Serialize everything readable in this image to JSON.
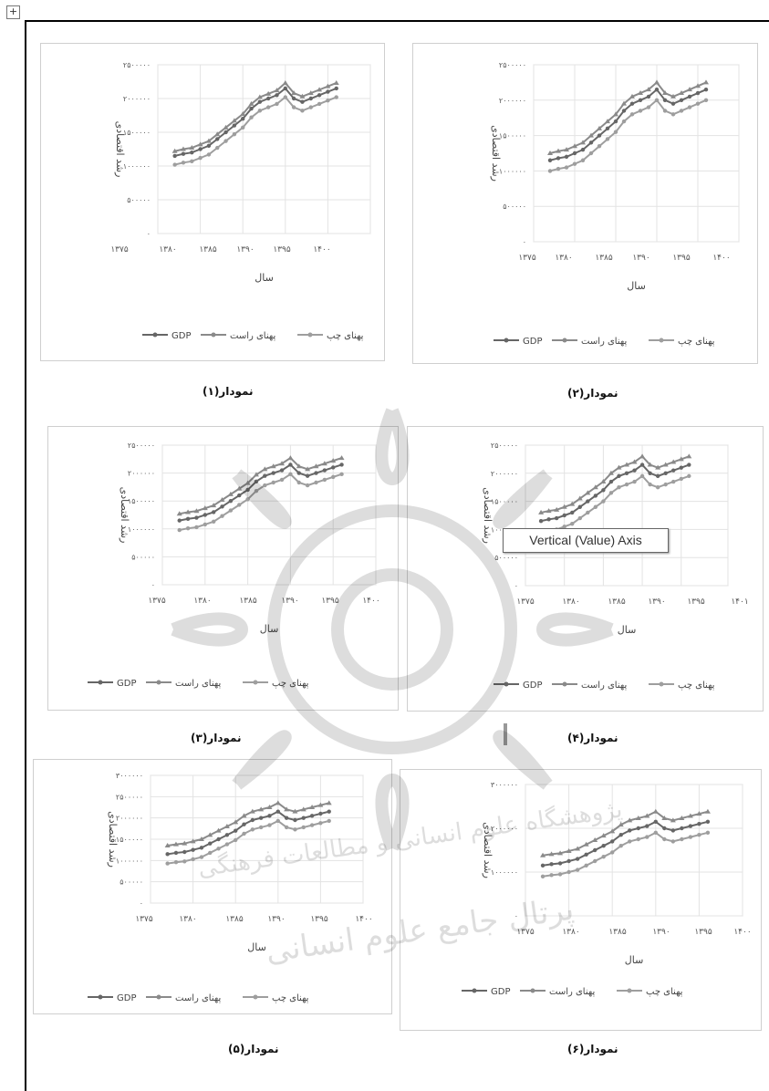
{
  "page": {
    "move_handle_glyph": "+",
    "tooltip_text": "Vertical (Value) Axis",
    "captions": [
      "نمودار(۱)",
      "نمودار(۲)",
      "نمودار(۳)",
      "نمودار(۴)",
      "نمودار(۵)",
      "نمودار(۶)"
    ],
    "watermark_lines": [
      "پژوهشگاه علوم انسانی و مطالعات فرهنگی",
      "پرتال جامع علوم انسانی"
    ]
  },
  "chart_data": [
    {
      "type": "line",
      "caption": "نمودار(۱)",
      "ylabel": "رشد اقتصادی",
      "xlabel": "سال",
      "ylim": [
        0,
        2500000
      ],
      "yticks": [
        {
          "v": 0,
          "label": "۰"
        },
        {
          "v": 500000,
          "label": "۵۰۰۰۰۰"
        },
        {
          "v": 1000000,
          "label": "۱۰۰۰۰۰۰"
        },
        {
          "v": 1500000,
          "label": "۱۵۰۰۰۰۰"
        },
        {
          "v": 2000000,
          "label": "۲۰۰۰۰۰۰"
        },
        {
          "v": 2500000,
          "label": "۲۵۰۰۰۰۰"
        }
      ],
      "xlim": [
        1375,
        1400
      ],
      "xticks": [
        {
          "v": 1375,
          "label": "۱۳۷۵"
        },
        {
          "v": 1380,
          "label": "۱۳۸۰"
        },
        {
          "v": 1385,
          "label": "۱۳۸۵"
        },
        {
          "v": 1390,
          "label": "۱۳۹۰"
        },
        {
          "v": 1395,
          "label": "۱۳۹۵"
        },
        {
          "v": 1400,
          "label": "۱۴۰۰"
        }
      ],
      "x": [
        1377,
        1378,
        1379,
        1380,
        1381,
        1382,
        1383,
        1384,
        1385,
        1386,
        1387,
        1388,
        1389,
        1390,
        1391,
        1392,
        1393,
        1394,
        1395,
        1396
      ],
      "series": [
        {
          "name": "GDP",
          "color": "#666666",
          "values": [
            1150000,
            1180000,
            1200000,
            1250000,
            1300000,
            1400000,
            1500000,
            1600000,
            1700000,
            1850000,
            1950000,
            2000000,
            2050000,
            2150000,
            2000000,
            1950000,
            2000000,
            2050000,
            2100000,
            2150000
          ]
        },
        {
          "name": "پهنای راست",
          "color": "#8a8a8a",
          "values": [
            1220000,
            1250000,
            1270000,
            1320000,
            1370000,
            1470000,
            1570000,
            1670000,
            1770000,
            1920000,
            2020000,
            2070000,
            2120000,
            2230000,
            2080000,
            2030000,
            2080000,
            2130000,
            2180000,
            2230000
          ]
        },
        {
          "name": "پهنای چپ",
          "color": "#9e9e9e",
          "values": [
            1020000,
            1050000,
            1070000,
            1120000,
            1170000,
            1270000,
            1370000,
            1470000,
            1570000,
            1720000,
            1820000,
            1870000,
            1920000,
            2020000,
            1870000,
            1820000,
            1870000,
            1920000,
            1970000,
            2020000
          ]
        }
      ]
    },
    {
      "type": "line",
      "caption": "نمودار(۲)",
      "ylabel": "رشد اقتصادی",
      "xlabel": "سال",
      "ylim": [
        0,
        2500000
      ],
      "yticks": [
        {
          "v": 0,
          "label": "۰"
        },
        {
          "v": 500000,
          "label": "۵۰۰۰۰۰"
        },
        {
          "v": 1000000,
          "label": "۱۰۰۰۰۰۰"
        },
        {
          "v": 1500000,
          "label": "۱۵۰۰۰۰۰"
        },
        {
          "v": 2000000,
          "label": "۲۰۰۰۰۰۰"
        },
        {
          "v": 2500000,
          "label": "۲۵۰۰۰۰۰"
        }
      ],
      "xlim": [
        1375,
        1400
      ],
      "xticks": [
        {
          "v": 1375,
          "label": "۱۳۷۵"
        },
        {
          "v": 1380,
          "label": "۱۳۸۰"
        },
        {
          "v": 1385,
          "label": "۱۳۸۵"
        },
        {
          "v": 1390,
          "label": "۱۳۹۰"
        },
        {
          "v": 1395,
          "label": "۱۳۹۵"
        },
        {
          "v": 1400,
          "label": "۱۴۰۰"
        }
      ],
      "x": [
        1377,
        1378,
        1379,
        1380,
        1381,
        1382,
        1383,
        1384,
        1385,
        1386,
        1387,
        1388,
        1389,
        1390,
        1391,
        1392,
        1393,
        1394,
        1395,
        1396
      ],
      "series": [
        {
          "name": "GDP",
          "color": "#666666",
          "values": [
            1150000,
            1180000,
            1200000,
            1250000,
            1300000,
            1400000,
            1500000,
            1600000,
            1700000,
            1850000,
            1950000,
            2000000,
            2050000,
            2150000,
            2000000,
            1950000,
            2000000,
            2050000,
            2100000,
            2150000
          ]
        },
        {
          "name": "پهنای راست",
          "color": "#8a8a8a",
          "values": [
            1250000,
            1280000,
            1300000,
            1350000,
            1400000,
            1500000,
            1600000,
            1700000,
            1800000,
            1950000,
            2050000,
            2100000,
            2150000,
            2250000,
            2100000,
            2050000,
            2100000,
            2150000,
            2200000,
            2250000
          ]
        },
        {
          "name": "پهنای چپ",
          "color": "#9e9e9e",
          "values": [
            1000000,
            1030000,
            1050000,
            1100000,
            1150000,
            1250000,
            1350000,
            1450000,
            1550000,
            1700000,
            1800000,
            1850000,
            1900000,
            2000000,
            1850000,
            1800000,
            1850000,
            1900000,
            1950000,
            2000000
          ]
        }
      ]
    },
    {
      "type": "line",
      "caption": "نمودار(۳)",
      "ylabel": "رشد اقتصادی",
      "xlabel": "سال",
      "ylim": [
        0,
        2500000
      ],
      "yticks": [
        {
          "v": 0,
          "label": "۰"
        },
        {
          "v": 500000,
          "label": "۵۰۰۰۰۰"
        },
        {
          "v": 1000000,
          "label": "۱۰۰۰۰۰۰"
        },
        {
          "v": 1500000,
          "label": "۱۵۰۰۰۰۰"
        },
        {
          "v": 2000000,
          "label": "۲۰۰۰۰۰۰"
        },
        {
          "v": 2500000,
          "label": "۲۵۰۰۰۰۰"
        }
      ],
      "xlim": [
        1375,
        1400
      ],
      "xticks": [
        {
          "v": 1375,
          "label": "۱۳۷۵"
        },
        {
          "v": 1380,
          "label": "۱۳۸۰"
        },
        {
          "v": 1385,
          "label": "۱۳۸۵"
        },
        {
          "v": 1390,
          "label": "۱۳۹۰"
        },
        {
          "v": 1395,
          "label": "۱۳۹۵"
        },
        {
          "v": 1400,
          "label": "۱۴۰۰"
        }
      ],
      "x": [
        1377,
        1378,
        1379,
        1380,
        1381,
        1382,
        1383,
        1384,
        1385,
        1386,
        1387,
        1388,
        1389,
        1390,
        1391,
        1392,
        1393,
        1394,
        1395,
        1396
      ],
      "series": [
        {
          "name": "GDP",
          "color": "#666666",
          "values": [
            1150000,
            1180000,
            1200000,
            1250000,
            1300000,
            1400000,
            1500000,
            1600000,
            1700000,
            1850000,
            1950000,
            2000000,
            2050000,
            2150000,
            2000000,
            1950000,
            2000000,
            2050000,
            2100000,
            2150000
          ]
        },
        {
          "name": "پهنای راست",
          "color": "#8a8a8a",
          "values": [
            1270000,
            1300000,
            1320000,
            1370000,
            1420000,
            1520000,
            1620000,
            1720000,
            1820000,
            1970000,
            2070000,
            2120000,
            2170000,
            2270000,
            2120000,
            2070000,
            2120000,
            2170000,
            2220000,
            2270000
          ]
        },
        {
          "name": "پهنای چپ",
          "color": "#9e9e9e",
          "values": [
            980000,
            1010000,
            1030000,
            1080000,
            1130000,
            1230000,
            1330000,
            1430000,
            1530000,
            1680000,
            1780000,
            1830000,
            1880000,
            1980000,
            1830000,
            1780000,
            1830000,
            1880000,
            1930000,
            1980000
          ]
        }
      ]
    },
    {
      "type": "line",
      "caption": "نمودار(۴)",
      "ylabel": "رشد اقتصادی",
      "xlabel": "سال",
      "ylim": [
        0,
        2500000
      ],
      "yticks": [
        {
          "v": 0,
          "label": "۰"
        },
        {
          "v": 500000,
          "label": "۵۰۰۰۰۰"
        },
        {
          "v": 1000000,
          "label": "۱۰۰۰۰۰۰"
        },
        {
          "v": 1500000,
          "label": "۱۵۰۰۰۰۰"
        },
        {
          "v": 2000000,
          "label": "۲۰۰۰۰۰۰"
        },
        {
          "v": 2500000,
          "label": "۲۵۰۰۰۰۰"
        }
      ],
      "xlim": [
        1375,
        1401
      ],
      "xticks": [
        {
          "v": 1375,
          "label": "۱۳۷۵"
        },
        {
          "v": 1380,
          "label": "۱۳۸۰"
        },
        {
          "v": 1385,
          "label": "۱۳۸۵"
        },
        {
          "v": 1390,
          "label": "۱۳۹۰"
        },
        {
          "v": 1395,
          "label": "۱۳۹۵"
        },
        {
          "v": 1401,
          "label": "۱۴۰۱"
        }
      ],
      "x": [
        1377,
        1378,
        1379,
        1380,
        1381,
        1382,
        1383,
        1384,
        1385,
        1386,
        1387,
        1388,
        1389,
        1390,
        1391,
        1392,
        1393,
        1394,
        1395,
        1396
      ],
      "series": [
        {
          "name": "GDP",
          "color": "#666666",
          "values": [
            1150000,
            1180000,
            1200000,
            1250000,
            1300000,
            1400000,
            1500000,
            1600000,
            1700000,
            1850000,
            1950000,
            2000000,
            2050000,
            2150000,
            2000000,
            1950000,
            2000000,
            2050000,
            2100000,
            2150000
          ]
        },
        {
          "name": "پهنای راست",
          "color": "#8a8a8a",
          "values": [
            1300000,
            1330000,
            1350000,
            1400000,
            1450000,
            1550000,
            1650000,
            1750000,
            1850000,
            2000000,
            2100000,
            2150000,
            2200000,
            2300000,
            2150000,
            2100000,
            2150000,
            2200000,
            2250000,
            2300000
          ]
        },
        {
          "name": "پهنای چپ",
          "color": "#9e9e9e",
          "values": [
            950000,
            980000,
            1000000,
            1050000,
            1100000,
            1200000,
            1300000,
            1400000,
            1500000,
            1650000,
            1750000,
            1800000,
            1850000,
            1950000,
            1800000,
            1750000,
            1800000,
            1850000,
            1900000,
            1950000
          ]
        }
      ]
    },
    {
      "type": "line",
      "caption": "نمودار(۵)",
      "ylabel": "رشد اقتصادی",
      "xlabel": "سال",
      "ylim": [
        0,
        3000000
      ],
      "yticks": [
        {
          "v": 0,
          "label": "۰"
        },
        {
          "v": 500000,
          "label": "۵۰۰۰۰۰"
        },
        {
          "v": 1000000,
          "label": "۱۰۰۰۰۰۰"
        },
        {
          "v": 1500000,
          "label": "۱۵۰۰۰۰۰"
        },
        {
          "v": 2000000,
          "label": "۲۰۰۰۰۰۰"
        },
        {
          "v": 2500000,
          "label": "۲۵۰۰۰۰۰"
        },
        {
          "v": 3000000,
          "label": "۳۰۰۰۰۰۰"
        }
      ],
      "xlim": [
        1375,
        1400
      ],
      "xticks": [
        {
          "v": 1375,
          "label": "۱۳۷۵"
        },
        {
          "v": 1380,
          "label": "۱۳۸۰"
        },
        {
          "v": 1385,
          "label": "۱۳۸۵"
        },
        {
          "v": 1390,
          "label": "۱۳۹۰"
        },
        {
          "v": 1395,
          "label": "۱۳۹۵"
        },
        {
          "v": 1400,
          "label": "۱۴۰۰"
        }
      ],
      "x": [
        1377,
        1378,
        1379,
        1380,
        1381,
        1382,
        1383,
        1384,
        1385,
        1386,
        1387,
        1388,
        1389,
        1390,
        1391,
        1392,
        1393,
        1394,
        1395,
        1396
      ],
      "series": [
        {
          "name": "GDP",
          "color": "#666666",
          "values": [
            1150000,
            1180000,
            1200000,
            1250000,
            1300000,
            1400000,
            1500000,
            1600000,
            1700000,
            1850000,
            1950000,
            2000000,
            2050000,
            2150000,
            2000000,
            1950000,
            2000000,
            2050000,
            2100000,
            2150000
          ]
        },
        {
          "name": "پهنای راست",
          "color": "#8a8a8a",
          "values": [
            1350000,
            1380000,
            1400000,
            1450000,
            1500000,
            1600000,
            1700000,
            1800000,
            1900000,
            2050000,
            2150000,
            2200000,
            2250000,
            2350000,
            2200000,
            2150000,
            2200000,
            2250000,
            2300000,
            2350000
          ]
        },
        {
          "name": "پهنای چپ",
          "color": "#9e9e9e",
          "values": [
            930000,
            960000,
            980000,
            1030000,
            1080000,
            1180000,
            1280000,
            1380000,
            1480000,
            1630000,
            1730000,
            1780000,
            1830000,
            1930000,
            1780000,
            1730000,
            1780000,
            1830000,
            1880000,
            1930000
          ]
        }
      ]
    },
    {
      "type": "line",
      "caption": "نمودار(۶)",
      "ylabel": "رشد اقتصادی",
      "xlabel": "سال",
      "ylim": [
        0,
        3000000
      ],
      "yticks": [
        {
          "v": 0,
          "label": "۰"
        },
        {
          "v": 1000000,
          "label": "۱۰۰۰۰۰۰"
        },
        {
          "v": 2000000,
          "label": "۲۰۰۰۰۰۰"
        },
        {
          "v": 3000000,
          "label": "۳۰۰۰۰۰۰"
        }
      ],
      "xlim": [
        1375,
        1400
      ],
      "xticks": [
        {
          "v": 1375,
          "label": "۱۳۷۵"
        },
        {
          "v": 1380,
          "label": "۱۳۸۰"
        },
        {
          "v": 1385,
          "label": "۱۳۸۵"
        },
        {
          "v": 1390,
          "label": "۱۳۹۰"
        },
        {
          "v": 1395,
          "label": "۱۳۹۵"
        },
        {
          "v": 1400,
          "label": "۱۴۰۰"
        }
      ],
      "x": [
        1377,
        1378,
        1379,
        1380,
        1381,
        1382,
        1383,
        1384,
        1385,
        1386,
        1387,
        1388,
        1389,
        1390,
        1391,
        1392,
        1393,
        1394,
        1395,
        1396
      ],
      "series": [
        {
          "name": "GDP",
          "color": "#666666",
          "values": [
            1150000,
            1180000,
            1200000,
            1250000,
            1300000,
            1400000,
            1500000,
            1600000,
            1700000,
            1850000,
            1950000,
            2000000,
            2050000,
            2150000,
            2000000,
            1950000,
            2000000,
            2050000,
            2100000,
            2150000
          ]
        },
        {
          "name": "پهنای راست",
          "color": "#8a8a8a",
          "values": [
            1380000,
            1410000,
            1430000,
            1480000,
            1530000,
            1630000,
            1730000,
            1830000,
            1930000,
            2080000,
            2180000,
            2230000,
            2280000,
            2380000,
            2230000,
            2180000,
            2230000,
            2280000,
            2330000,
            2380000
          ]
        },
        {
          "name": "پهنای چپ",
          "color": "#9e9e9e",
          "values": [
            900000,
            930000,
            950000,
            1000000,
            1050000,
            1150000,
            1250000,
            1350000,
            1450000,
            1600000,
            1700000,
            1750000,
            1800000,
            1900000,
            1750000,
            1700000,
            1750000,
            1800000,
            1850000,
            1900000
          ]
        }
      ]
    }
  ]
}
